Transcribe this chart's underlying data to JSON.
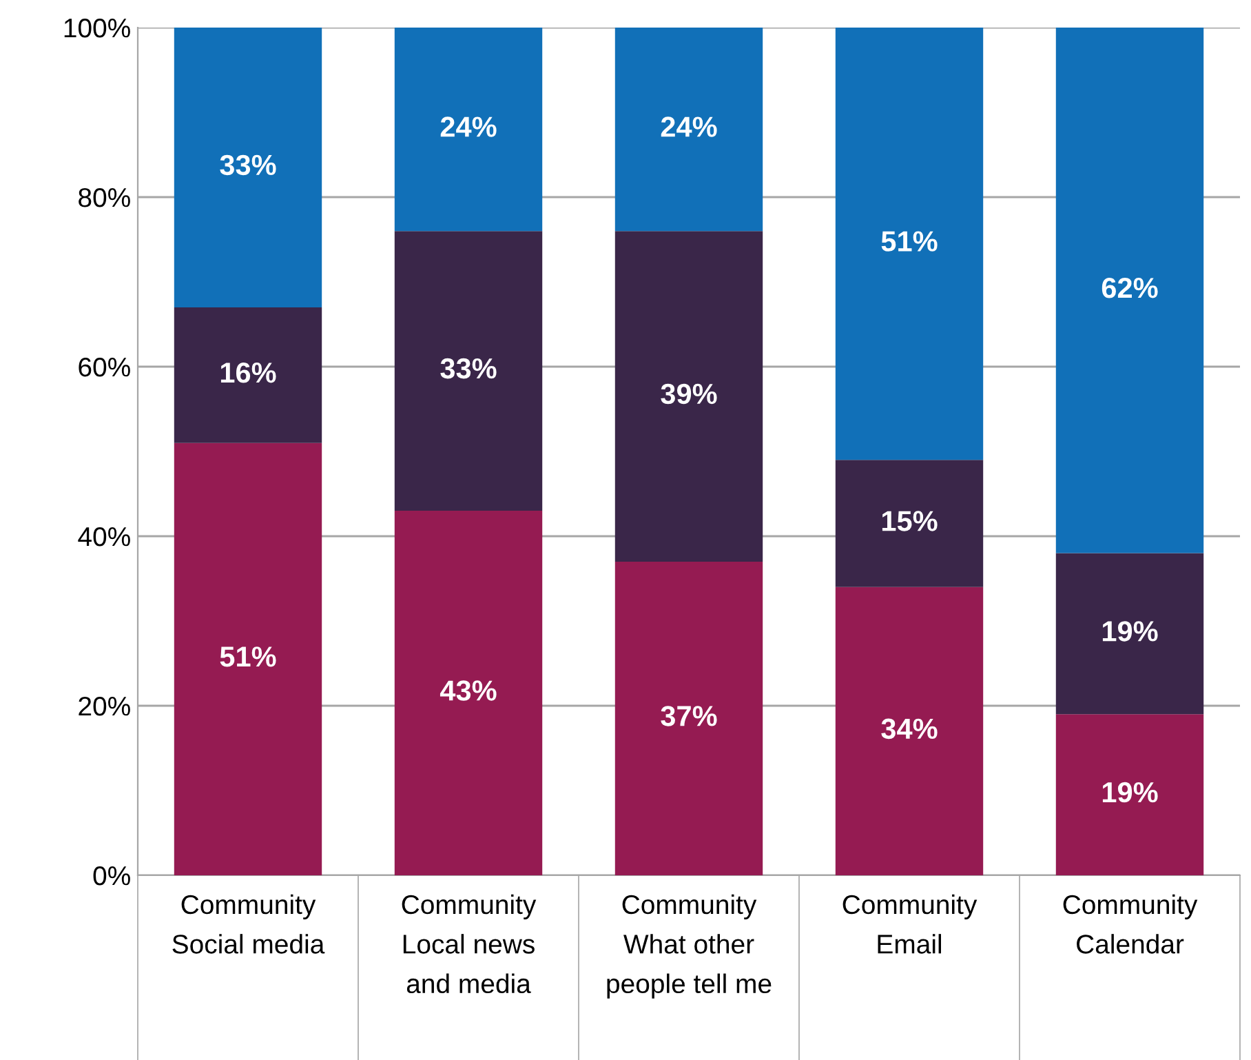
{
  "chart_data": {
    "type": "bar",
    "stacked": true,
    "categories": [
      "Community\nSocial media",
      "Community\nLocal news\nand media",
      "Community\nWhat other\npeople tell me",
      "Community\nEmail",
      "Community\nCalendar"
    ],
    "series": [
      {
        "color": "#951b52",
        "values": [
          51,
          43,
          37,
          34,
          19
        ],
        "value_labels": [
          "51%",
          "43%",
          "37%",
          "34%",
          "19%"
        ]
      },
      {
        "color": "#3a2649",
        "values": [
          16,
          33,
          39,
          15,
          19
        ],
        "value_labels": [
          "16%",
          "33%",
          "39%",
          "15%",
          "19%"
        ]
      },
      {
        "color": "#1170b8",
        "values": [
          33,
          24,
          24,
          51,
          62
        ],
        "value_labels": [
          "33%",
          "24%",
          "24%",
          "51%",
          "62%"
        ]
      }
    ],
    "ylim": [
      0,
      100
    ],
    "yticks": [
      {
        "value": 0,
        "label": "0%"
      },
      {
        "value": 20,
        "label": "20%"
      },
      {
        "value": 40,
        "label": "40%"
      },
      {
        "value": 60,
        "label": "60%"
      },
      {
        "value": 80,
        "label": "80%"
      },
      {
        "value": 100,
        "label": "100%"
      }
    ],
    "grid": "y",
    "legend": false
  }
}
